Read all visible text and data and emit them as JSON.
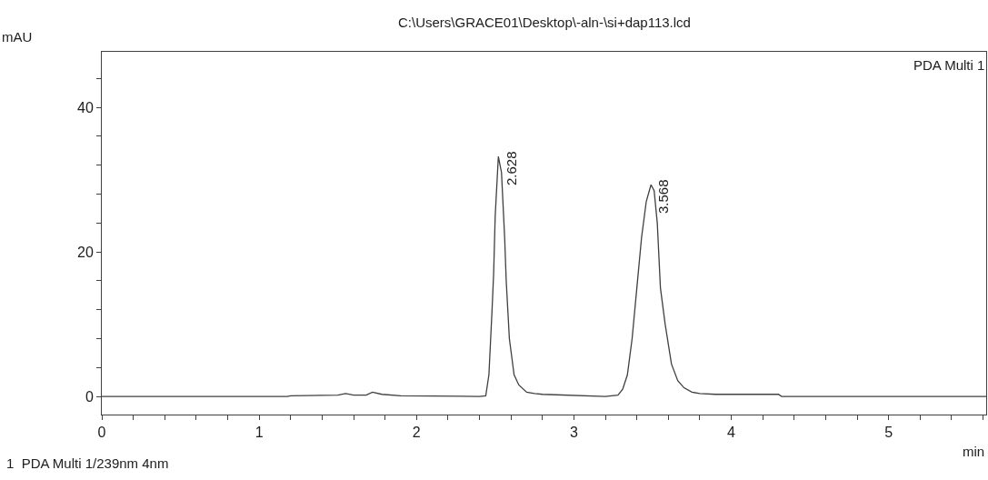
{
  "chart_data": {
    "type": "line",
    "title": "C:\\Users\\GRACE01\\Desktop\\-aln-\\si+dap113.lcd",
    "xlabel": "min",
    "ylabel": "mAU",
    "x": [
      0,
      1.18,
      1.2,
      1.5,
      1.55,
      1.6,
      1.68,
      1.72,
      1.78,
      1.9,
      2.4,
      2.44,
      2.46,
      2.48,
      2.49,
      2.5,
      2.52,
      2.54,
      2.56,
      2.57,
      2.59,
      2.62,
      2.65,
      2.7,
      2.75,
      2.8,
      3.2,
      3.28,
      3.31,
      3.34,
      3.37,
      3.4,
      3.43,
      3.46,
      3.49,
      3.51,
      3.53,
      3.55,
      3.58,
      3.62,
      3.66,
      3.7,
      3.75,
      3.8,
      3.9,
      4.3,
      4.32,
      5.62
    ],
    "series": [
      {
        "color": "#404040",
        "values": [
          0,
          0,
          0.1,
          0.2,
          0.4,
          0.2,
          0.2,
          0.6,
          0.3,
          0.1,
          0,
          0.1,
          3,
          12,
          17,
          25,
          33.2,
          31,
          22,
          16,
          8,
          3,
          1.6,
          0.6,
          0.4,
          0.3,
          0,
          0.2,
          1,
          3,
          8,
          15,
          22,
          27,
          29.3,
          28.5,
          24,
          15,
          10,
          4.5,
          2.2,
          1.2,
          0.6,
          0.4,
          0.3,
          0.3,
          0,
          0
        ]
      }
    ],
    "xlim": [
      0,
      5.62
    ],
    "ylim": [
      -2.5,
      47.7
    ],
    "xticks": [
      0,
      {
        "value": 0.2,
        "label": null
      },
      {
        "value": 0.4,
        "label": null
      },
      {
        "value": 0.6,
        "label": null
      },
      {
        "value": 0.8,
        "label": null
      },
      1,
      {
        "value": 1.2,
        "label": null
      },
      {
        "value": 1.4,
        "label": null
      },
      {
        "value": 1.6,
        "label": null
      },
      {
        "value": 1.8,
        "label": null
      },
      2,
      {
        "value": 2.2,
        "label": null
      },
      {
        "value": 2.4,
        "label": null
      },
      {
        "value": 2.6,
        "label": null
      },
      {
        "value": 2.8,
        "label": null
      },
      3,
      {
        "value": 3.2,
        "label": null
      },
      {
        "value": 3.4,
        "label": null
      },
      {
        "value": 3.6,
        "label": null
      },
      {
        "value": 3.8,
        "label": null
      },
      4,
      {
        "value": 4.2,
        "label": null
      },
      {
        "value": 4.4,
        "label": null
      },
      {
        "value": 4.6,
        "label": null
      },
      {
        "value": 4.8,
        "label": null
      },
      5,
      {
        "value": 5.2,
        "label": null
      },
      {
        "value": 5.4,
        "label": null
      },
      {
        "value": 5.6,
        "label": null
      }
    ],
    "yticks": [
      0,
      {
        "value": 4,
        "label": null
      },
      {
        "value": 8,
        "label": null
      },
      {
        "value": 12,
        "label": null
      },
      {
        "value": 16,
        "label": null
      },
      20,
      {
        "value": 24,
        "label": null
      },
      {
        "value": 28,
        "label": null
      },
      {
        "value": 32,
        "label": null
      },
      {
        "value": 36,
        "label": null
      },
      40,
      {
        "value": 44,
        "label": null
      }
    ],
    "marker": "none",
    "line_style": "solid",
    "annotations": [
      {
        "text": "2.628",
        "x": 2.52,
        "y": 33.2
      },
      {
        "text": "3.568",
        "x": 3.49,
        "y": 29.3
      },
      "PDA Multi 1",
      "1  PDA Multi 1/239nm 4nm"
    ]
  }
}
